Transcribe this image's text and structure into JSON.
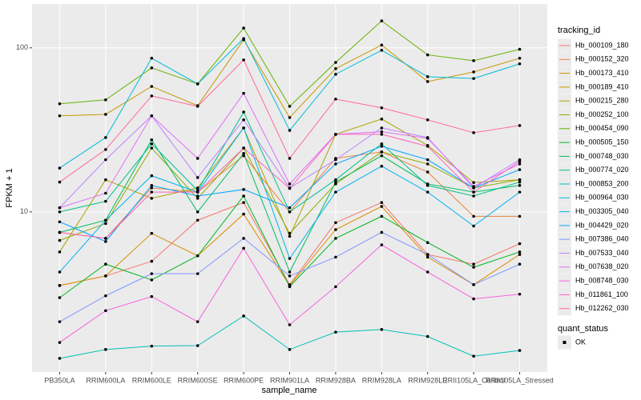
{
  "chart_data": {
    "type": "line",
    "y_scale": "log",
    "grid": true,
    "x_label": "sample_name",
    "y_label": "FPKM + 1",
    "categories": [
      "PB350LA",
      "RRIM600LA",
      "RRIM600LE",
      "RRIM600SE",
      "RRIM600PE",
      "RRIM901LA",
      "RRIM928BA",
      "RRIM928LA",
      "RRIM928LE",
      "RRII105LA_Control",
      "RRII105LA_Stressed"
    ],
    "ylim": [
      1.057,
      185
    ],
    "yticks": [
      10,
      100
    ],
    "legend_title": "tracking_id",
    "shape_legend": {
      "title": "quant_status",
      "labels": [
        "OK"
      ]
    },
    "series": [
      {
        "name": "Hb_000109_180",
        "color": "#F8766D",
        "values": [
          3.56,
          4.07,
          5.0,
          8.9,
          11.4,
          3.6,
          8.6,
          11.4,
          5.5,
          4.8,
          6.4
        ]
      },
      {
        "name": "Hb_000152_320",
        "color": "#EC8239",
        "values": [
          7.5,
          6.9,
          14.0,
          13.2,
          22.0,
          10.0,
          21.2,
          23.2,
          17.5,
          9.4,
          9.4
        ]
      },
      {
        "name": "Hb_000173_410",
        "color": "#DB8E00",
        "values": [
          3.56,
          4.07,
          7.4,
          5.4,
          9.7,
          3.56,
          7.8,
          10.8,
          5.3,
          3.6,
          5.5
        ]
      },
      {
        "name": "Hb_000189_410",
        "color": "#C79800",
        "values": [
          38.5,
          39.3,
          58.2,
          44.4,
          112,
          37.6,
          74.7,
          104,
          62.3,
          71.3,
          86.4
        ]
      },
      {
        "name": "Hb_000215_280",
        "color": "#AEA200",
        "values": [
          5.7,
          15.7,
          12.1,
          14.0,
          32.5,
          7.1,
          29.7,
          36.8,
          25.4,
          15.1,
          15.7
        ]
      },
      {
        "name": "Hb_000252_100",
        "color": "#8FAA00",
        "values": [
          6.7,
          8.5,
          24.5,
          12.1,
          24.5,
          7.4,
          14.8,
          23.2,
          19.6,
          14.0,
          15.7
        ]
      },
      {
        "name": "Hb_000454_090",
        "color": "#64B200",
        "values": [
          45.6,
          48.2,
          75.5,
          60.3,
          132,
          44.0,
          81.5,
          146,
          90.6,
          83.5,
          98
        ]
      },
      {
        "name": "Hb_000505_150",
        "color": "#00B81B",
        "values": [
          3.0,
          4.8,
          3.85,
          5.4,
          12.5,
          3.5,
          6.9,
          9.4,
          6.5,
          4.6,
          5.7
        ]
      },
      {
        "name": "Hb_000748_030",
        "color": "#00BD5C",
        "values": [
          7.5,
          8.9,
          27.5,
          10.0,
          22.7,
          4.3,
          15.2,
          22.0,
          14.8,
          13.2,
          14.5
        ]
      },
      {
        "name": "Hb_000774_020",
        "color": "#00C08D",
        "values": [
          10.0,
          11.6,
          26.0,
          13.5,
          40.6,
          10.0,
          15.7,
          26.0,
          14.5,
          12.5,
          15.2
        ]
      },
      {
        "name": "Hb_000853_200",
        "color": "#00C1B3",
        "values": [
          1.28,
          1.45,
          1.52,
          1.53,
          2.32,
          1.45,
          1.85,
          1.92,
          1.74,
          1.32,
          1.43
        ]
      },
      {
        "name": "Hb_000964_030",
        "color": "#00BCD6",
        "values": [
          18.5,
          28.4,
          86.4,
          60.3,
          114,
          31.4,
          69.0,
          96.7,
          66.7,
          65.0,
          79.9
        ]
      },
      {
        "name": "Hb_003305_040",
        "color": "#00B4EF",
        "values": [
          4.3,
          8.9,
          16.6,
          13.2,
          32.5,
          5.2,
          13.2,
          19.0,
          13.2,
          8.2,
          13.2
        ]
      },
      {
        "name": "Hb_004429_020",
        "color": "#00A7FF",
        "values": [
          8.7,
          6.6,
          14.5,
          12.5,
          13.7,
          10.6,
          19.6,
          25.1,
          20.8,
          14.0,
          18.1
        ]
      },
      {
        "name": "Hb_007386_040",
        "color": "#7F96FF",
        "values": [
          2.14,
          3.08,
          4.2,
          4.2,
          6.9,
          4.07,
          5.3,
          7.5,
          5.5,
          3.6,
          4.8
        ]
      },
      {
        "name": "Hb_007533_040",
        "color": "#BC81FF",
        "values": [
          10.6,
          20.8,
          38.5,
          16.2,
          36.4,
          14.0,
          20.8,
          32.5,
          28.4,
          14.0,
          20.8
        ]
      },
      {
        "name": "Hb_007638_020",
        "color": "#E26EF7",
        "values": [
          10.6,
          13.0,
          38.5,
          21.2,
          52.8,
          14.8,
          29.7,
          30.8,
          28.1,
          14.3,
          19.6
        ]
      },
      {
        "name": "Hb_008748_030",
        "color": "#F863DF",
        "values": [
          1.6,
          2.5,
          3.05,
          2.14,
          6.0,
          2.05,
          3.5,
          6.3,
          4.3,
          2.95,
          3.15
        ]
      },
      {
        "name": "Hb_011861_100",
        "color": "#FF62BF",
        "values": [
          7.5,
          6.9,
          13.2,
          13.2,
          24.5,
          13.9,
          29.7,
          29.7,
          25.1,
          13.2,
          20.3
        ]
      },
      {
        "name": "Hb_012262_030",
        "color": "#FF6A9A",
        "values": [
          15.2,
          24.0,
          50.9,
          44.0,
          84.4,
          21.2,
          48.7,
          43.1,
          36.4,
          30.4,
          33.6
        ]
      }
    ]
  }
}
